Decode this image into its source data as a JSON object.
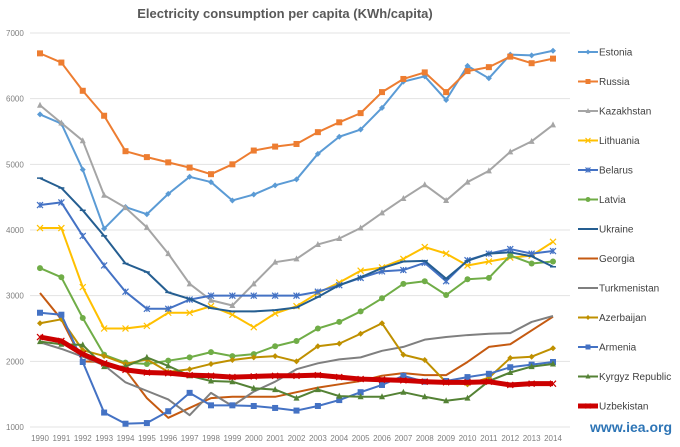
{
  "chart_data": {
    "type": "line",
    "title": "Electricity consumption per capita (KWh/capita)",
    "xlabel": "",
    "ylabel": "",
    "ylim": [
      1000,
      7000
    ],
    "yticks": [
      1000,
      2000,
      3000,
      4000,
      5000,
      6000,
      7000
    ],
    "grid": true,
    "legend_position": "right",
    "x": [
      1990,
      1991,
      1992,
      1993,
      1994,
      1995,
      1996,
      1997,
      1998,
      1999,
      2000,
      2001,
      2002,
      2003,
      2004,
      2005,
      2006,
      2007,
      2008,
      2009,
      2010,
      2011,
      2012,
      2013,
      2014
    ],
    "series": [
      {
        "name": "Estonia",
        "color": "#5b9bd5",
        "marker": "diamond",
        "width": 2,
        "values": [
          5760,
          5620,
          4920,
          4020,
          4350,
          4240,
          4550,
          4810,
          4730,
          4450,
          4540,
          4680,
          4770,
          5160,
          5420,
          5530,
          5860,
          6260,
          6340,
          5980,
          6500,
          6310,
          6670,
          6660,
          6730
        ]
      },
      {
        "name": "Russia",
        "color": "#ed7d31",
        "marker": "square",
        "width": 2,
        "values": [
          6690,
          6550,
          6120,
          5740,
          5200,
          5110,
          5030,
          4950,
          4850,
          5000,
          5210,
          5270,
          5310,
          5490,
          5640,
          5780,
          6100,
          6300,
          6400,
          6100,
          6420,
          6480,
          6640,
          6540,
          6610
        ]
      },
      {
        "name": "Kazakhstan",
        "color": "#a5a5a5",
        "marker": "triangle",
        "width": 2,
        "values": [
          5900,
          5630,
          5360,
          4530,
          4340,
          4040,
          3640,
          3180,
          2930,
          2850,
          3180,
          3510,
          3560,
          3780,
          3870,
          4030,
          4260,
          4480,
          4690,
          4450,
          4730,
          4900,
          5190,
          5350,
          5600
        ]
      },
      {
        "name": "Lithuania",
        "color": "#ffc000",
        "marker": "x",
        "width": 2,
        "values": [
          4030,
          4030,
          3130,
          2500,
          2500,
          2540,
          2740,
          2740,
          2840,
          2710,
          2520,
          2730,
          2840,
          3040,
          3200,
          3380,
          3430,
          3560,
          3740,
          3640,
          3460,
          3520,
          3580,
          3610,
          3820
        ]
      },
      {
        "name": "Belarus",
        "color": "#4472c4",
        "marker": "star",
        "width": 2,
        "values": [
          4380,
          4420,
          3910,
          3460,
          3060,
          2800,
          2800,
          2940,
          3000,
          3000,
          3000,
          3000,
          3000,
          3060,
          3160,
          3270,
          3370,
          3390,
          3500,
          3220,
          3540,
          3640,
          3710,
          3640,
          3680
        ]
      },
      {
        "name": "Latvia",
        "color": "#70ad47",
        "marker": "circle",
        "width": 2,
        "values": [
          3420,
          3280,
          2660,
          2100,
          1980,
          1960,
          2010,
          2060,
          2140,
          2080,
          2110,
          2230,
          2310,
          2500,
          2600,
          2760,
          2960,
          3180,
          3220,
          3010,
          3250,
          3270,
          3610,
          3490,
          3520
        ]
      },
      {
        "name": "Ukraine",
        "color": "#255e91",
        "marker": "dash",
        "width": 2,
        "values": [
          4790,
          4640,
          4300,
          3910,
          3490,
          3360,
          3050,
          2950,
          2810,
          2760,
          2760,
          2780,
          2820,
          2980,
          3160,
          3280,
          3420,
          3520,
          3530,
          3260,
          3530,
          3640,
          3660,
          3600,
          3440
        ]
      },
      {
        "name": "Georgia",
        "color": "#c55a11",
        "marker": "none",
        "width": 2,
        "values": [
          3040,
          2640,
          2000,
          1990,
          1870,
          1440,
          1140,
          1290,
          1440,
          1460,
          1460,
          1460,
          1530,
          1600,
          1650,
          1700,
          1780,
          1820,
          1790,
          1790,
          1990,
          2220,
          2260,
          2470,
          2680
        ]
      },
      {
        "name": "Turkmenistan",
        "color": "#7f7f7f",
        "marker": "none",
        "width": 2,
        "values": [
          2290,
          2190,
          2070,
          1940,
          1680,
          1550,
          1420,
          1180,
          1520,
          1320,
          1540,
          1690,
          1880,
          1970,
          2030,
          2060,
          2160,
          2220,
          2330,
          2370,
          2400,
          2420,
          2430,
          2600,
          2690
        ]
      },
      {
        "name": "Azerbaijan",
        "color": "#bf9000",
        "marker": "diamond",
        "width": 2,
        "values": [
          2580,
          2640,
          2170,
          2080,
          1960,
          2030,
          1840,
          1880,
          1960,
          2020,
          2060,
          2080,
          2000,
          2230,
          2270,
          2420,
          2580,
          2100,
          2020,
          1680,
          1650,
          1750,
          2050,
          2070,
          2200
        ]
      },
      {
        "name": "Armenia",
        "color": "#4472c4",
        "marker": "square",
        "width": 2,
        "values": [
          2740,
          2710,
          1990,
          1220,
          1050,
          1060,
          1240,
          1520,
          1330,
          1330,
          1320,
          1290,
          1250,
          1320,
          1410,
          1530,
          1640,
          1780,
          1690,
          1700,
          1760,
          1810,
          1910,
          1950,
          1990
        ]
      },
      {
        "name": "Kyrgyz Republic",
        "color": "#548235",
        "marker": "triangle",
        "width": 2,
        "values": [
          2300,
          2260,
          2250,
          1920,
          1920,
          2060,
          1930,
          1780,
          1700,
          1690,
          1590,
          1570,
          1440,
          1570,
          1470,
          1460,
          1460,
          1530,
          1460,
          1400,
          1440,
          1700,
          1830,
          1920,
          1960
        ]
      },
      {
        "name": "Uzbekistan",
        "color": "#cc0000",
        "marker": "x",
        "width": 5,
        "values": [
          2370,
          2310,
          2110,
          1970,
          1870,
          1830,
          1820,
          1790,
          1780,
          1760,
          1770,
          1780,
          1780,
          1790,
          1760,
          1730,
          1720,
          1710,
          1690,
          1680,
          1680,
          1690,
          1640,
          1660,
          1660
        ]
      }
    ]
  },
  "source_label": "www.iea.org"
}
